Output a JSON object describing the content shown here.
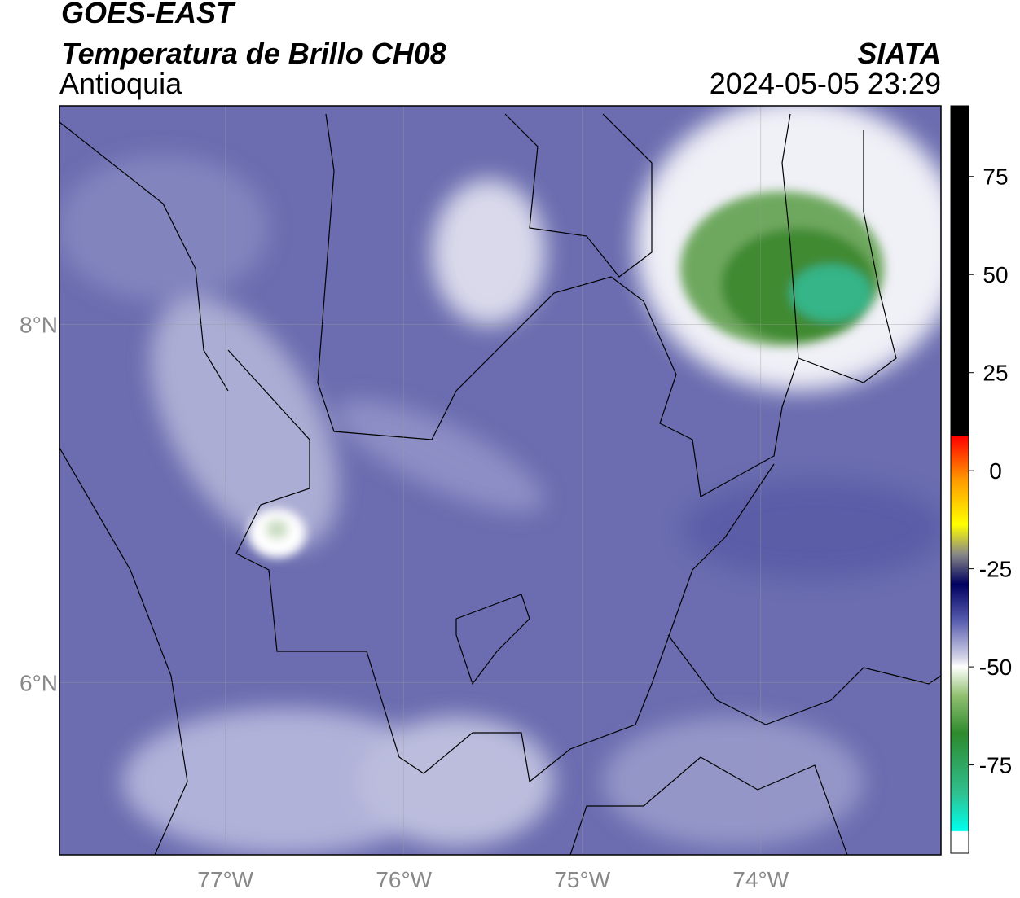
{
  "header": {
    "title": "GOES-EAST",
    "subtitle": "Temperatura de Brillo CH08",
    "region": "Antioquia",
    "source": "SIATA",
    "timestamp": "2024-05-05 23:29"
  },
  "map": {
    "lonlim": [
      -77.93,
      -72.99
    ],
    "latlim": [
      5.04,
      9.22
    ],
    "lon_ticks": [
      {
        "value": -77,
        "label": "77°W"
      },
      {
        "value": -76,
        "label": "76°W"
      },
      {
        "value": -75,
        "label": "75°W"
      },
      {
        "value": -74,
        "label": "74°W"
      }
    ],
    "lat_ticks": [
      {
        "value": 8,
        "label": "8°N"
      },
      {
        "value": 6,
        "label": "6°N"
      }
    ]
  },
  "colorbar": {
    "lim": [
      -97.5,
      93
    ],
    "ticks": [
      75,
      50,
      25,
      0,
      -25,
      -50,
      -75
    ]
  }
}
